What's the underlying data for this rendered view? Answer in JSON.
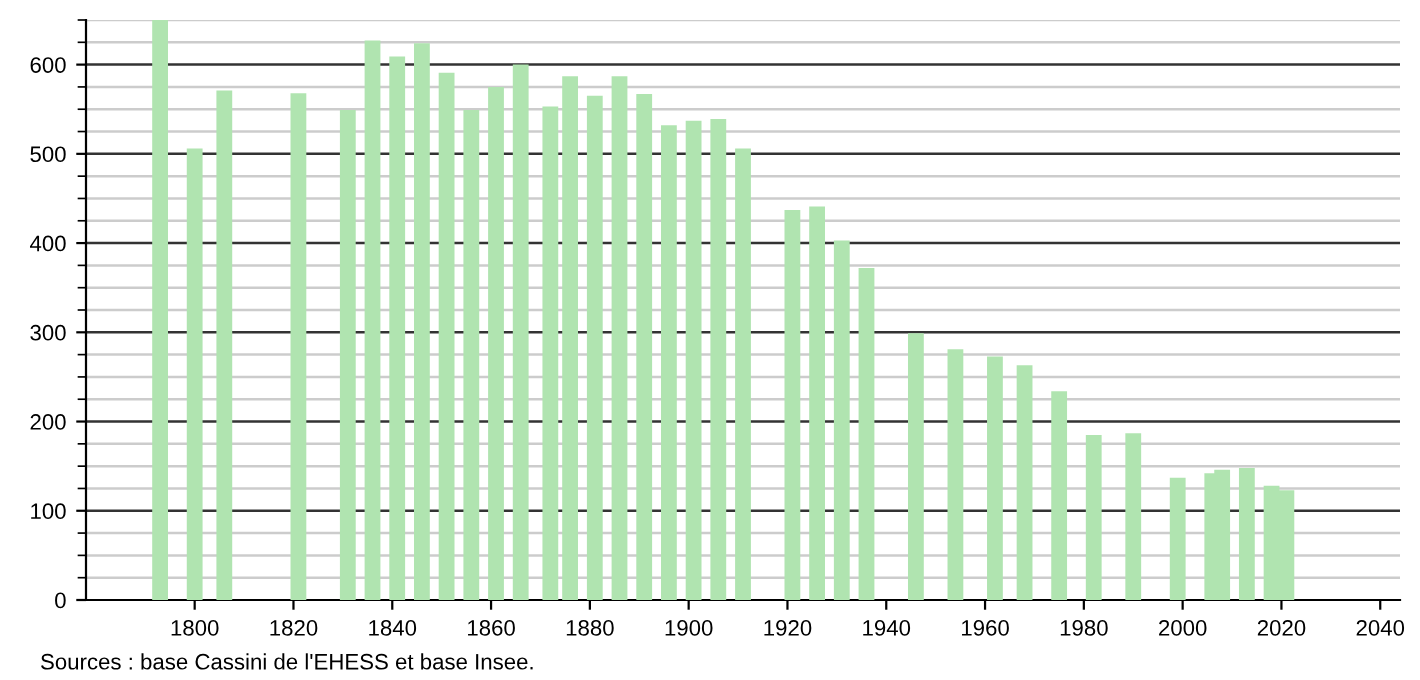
{
  "chart_data": {
    "type": "bar",
    "x": [
      1793,
      1800,
      1806,
      1821,
      1831,
      1836,
      1841,
      1846,
      1851,
      1856,
      1861,
      1866,
      1872,
      1876,
      1881,
      1886,
      1891,
      1896,
      1901,
      1906,
      1911,
      1921,
      1926,
      1931,
      1936,
      1946,
      1954,
      1962,
      1968,
      1975,
      1982,
      1990,
      1999,
      2006,
      2008,
      2013,
      2018,
      2021
    ],
    "values": [
      650,
      506,
      571,
      568,
      549,
      627,
      609,
      624,
      591,
      549,
      575,
      600,
      553,
      587,
      565,
      587,
      567,
      532,
      537,
      539,
      506,
      437,
      441,
      403,
      372,
      299,
      281,
      273,
      263,
      234,
      185,
      187,
      137,
      142,
      146,
      148,
      128,
      123
    ],
    "color": "#b0e4b0",
    "xlim": [
      1778,
      2044
    ],
    "xticks": [
      1800,
      1820,
      1840,
      1860,
      1880,
      1900,
      1920,
      1940,
      1960,
      1980,
      2000,
      2020,
      2040
    ],
    "ylim": [
      0,
      650
    ],
    "yticks": [
      0,
      100,
      200,
      300,
      400,
      500,
      600
    ],
    "grid": "y",
    "annotations": [
      "Sources : base Cassini de l'EHESS et base Insee."
    ]
  }
}
